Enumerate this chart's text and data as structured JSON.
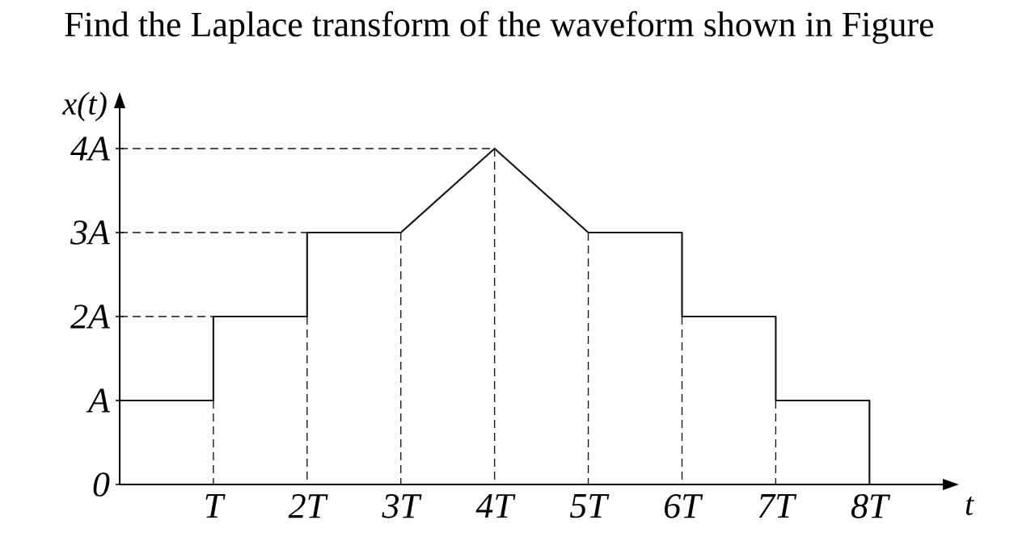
{
  "chart_data": {
    "type": "line",
    "title": "Find the Laplace transform of the waveform shown in Figure",
    "xlabel": "t",
    "ylabel": "x(t)",
    "xlim": [
      0,
      8.8
    ],
    "ylim": [
      0,
      4.5
    ],
    "xticks": [
      {
        "value": 1,
        "label": "T"
      },
      {
        "value": 2,
        "label": "2T"
      },
      {
        "value": 3,
        "label": "3T"
      },
      {
        "value": 4,
        "label": "4T"
      },
      {
        "value": 5,
        "label": "5T"
      },
      {
        "value": 6,
        "label": "6T"
      },
      {
        "value": 7,
        "label": "7T"
      },
      {
        "value": 8,
        "label": "8T"
      }
    ],
    "yticks": [
      0,
      {
        "value": 1,
        "label": "A"
      },
      {
        "value": 2,
        "label": "2A"
      },
      {
        "value": 3,
        "label": "3A"
      },
      {
        "value": 4,
        "label": "4A"
      }
    ],
    "series": [
      {
        "color": "#1a1a1a",
        "line_style": "solid",
        "x": [
          0,
          1,
          1,
          2,
          2,
          3,
          4,
          5,
          6,
          6,
          7,
          7,
          8,
          8
        ],
        "values": [
          1,
          1,
          2,
          2,
          3,
          3,
          4,
          3,
          3,
          2,
          2,
          1,
          1,
          0
        ]
      },
      {
        "color": "#1a1a1a",
        "line_style": "dashed",
        "x": [
          1,
          1
        ],
        "values": [
          1,
          0
        ]
      },
      {
        "color": "#1a1a1a",
        "line_style": "dashed",
        "x": [
          2,
          2
        ],
        "values": [
          2,
          0
        ]
      },
      {
        "color": "#1a1a1a",
        "line_style": "dashed",
        "x": [
          3,
          3
        ],
        "values": [
          3,
          0
        ]
      },
      {
        "color": "#1a1a1a",
        "line_style": "dashed",
        "x": [
          4,
          4
        ],
        "values": [
          4,
          0
        ]
      },
      {
        "color": "#1a1a1a",
        "line_style": "dashed",
        "x": [
          5,
          5
        ],
        "values": [
          3,
          0
        ]
      },
      {
        "color": "#1a1a1a",
        "line_style": "dashed",
        "x": [
          6,
          6
        ],
        "values": [
          2,
          0
        ]
      },
      {
        "color": "#1a1a1a",
        "line_style": "dashed",
        "x": [
          7,
          7
        ],
        "values": [
          1,
          0
        ]
      },
      {
        "color": "#1a1a1a",
        "line_style": "dashed",
        "x": [
          0,
          1
        ],
        "values": [
          2,
          2
        ]
      },
      {
        "color": "#1a1a1a",
        "line_style": "dashed",
        "x": [
          0,
          2
        ],
        "values": [
          3,
          3
        ]
      },
      {
        "color": "#1a1a1a",
        "line_style": "dashed",
        "x": [
          0,
          4
        ],
        "values": [
          4,
          4
        ]
      }
    ]
  }
}
